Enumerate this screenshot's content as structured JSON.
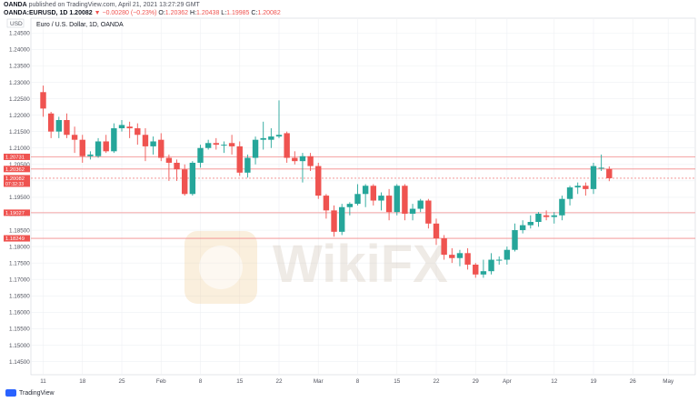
{
  "header": {
    "publish_prefix": "OANDA",
    "publish_line": "published on TradingView.com, April 21, 2021 13:27:29 GMT",
    "symbol_line": "OANDA:EURUSD, 1D 1.20082",
    "change": "▼ −0.00280 (−0.23%)",
    "ohlc": [
      {
        "label": "O:",
        "value": "1.20362"
      },
      {
        "label": "H:",
        "value": "1.20438"
      },
      {
        "label": "L:",
        "value": "1.19985"
      },
      {
        "label": "C:",
        "value": "1.20082"
      }
    ]
  },
  "currency_label": "USD",
  "chart_title": "Euro / U.S. Dollar, 1D, OANDA",
  "watermark": "WikiFX",
  "footer_brand": "TradingView",
  "colors": {
    "up": "#26a69a",
    "down": "#ef5350",
    "hline": "#f28a8a",
    "grid": "#eef0f3",
    "axis_text": "#50535e"
  },
  "chart_data": {
    "type": "candlestick",
    "title": "Euro / U.S. Dollar, 1D, OANDA",
    "ylim": [
      1.141,
      1.2495
    ],
    "y_ticks": [
      "1.14500",
      "1.15000",
      "1.15500",
      "1.16000",
      "1.16500",
      "1.17000",
      "1.17500",
      "1.18000",
      "1.18500",
      "1.19000",
      "1.19500",
      "1.20000",
      "1.20500",
      "1.21000",
      "1.21500",
      "1.22000",
      "1.22500",
      "1.23000",
      "1.23500",
      "1.24000",
      "1.24500"
    ],
    "x_ticks": [
      {
        "label": "11",
        "i": 0
      },
      {
        "label": "18",
        "i": 5
      },
      {
        "label": "25",
        "i": 10
      },
      {
        "label": "Feb",
        "i": 15
      },
      {
        "label": "8",
        "i": 20
      },
      {
        "label": "15",
        "i": 25
      },
      {
        "label": "22",
        "i": 30
      },
      {
        "label": "Mar",
        "i": 35
      },
      {
        "label": "8",
        "i": 40
      },
      {
        "label": "15",
        "i": 45
      },
      {
        "label": "22",
        "i": 50
      },
      {
        "label": "29",
        "i": 55
      },
      {
        "label": "Apr",
        "i": 59
      },
      {
        "label": "12",
        "i": 65
      },
      {
        "label": "19",
        "i": 70
      },
      {
        "label": "26",
        "i": 75
      },
      {
        "label": "May",
        "i": 79.5
      }
    ],
    "candles": [
      {
        "o": 1.227,
        "h": 1.229,
        "l": 1.2195,
        "c": 1.222
      },
      {
        "o": 1.2205,
        "h": 1.221,
        "l": 1.213,
        "c": 1.215
      },
      {
        "o": 1.215,
        "h": 1.2195,
        "l": 1.213,
        "c": 1.2185
      },
      {
        "o": 1.2185,
        "h": 1.2205,
        "l": 1.213,
        "c": 1.214
      },
      {
        "o": 1.214,
        "h": 1.2165,
        "l": 1.2085,
        "c": 1.2125
      },
      {
        "o": 1.2125,
        "h": 1.214,
        "l": 1.2055,
        "c": 1.2075
      },
      {
        "o": 1.2075,
        "h": 1.209,
        "l": 1.2065,
        "c": 1.208
      },
      {
        "o": 1.2075,
        "h": 1.213,
        "l": 1.207,
        "c": 1.212
      },
      {
        "o": 1.212,
        "h": 1.214,
        "l": 1.2085,
        "c": 1.209
      },
      {
        "o": 1.209,
        "h": 1.2175,
        "l": 1.2085,
        "c": 1.216
      },
      {
        "o": 1.216,
        "h": 1.2185,
        "l": 1.215,
        "c": 1.217
      },
      {
        "o": 1.2165,
        "h": 1.218,
        "l": 1.213,
        "c": 1.216
      },
      {
        "o": 1.216,
        "h": 1.2175,
        "l": 1.211,
        "c": 1.214
      },
      {
        "o": 1.214,
        "h": 1.216,
        "l": 1.206,
        "c": 1.2105
      },
      {
        "o": 1.2105,
        "h": 1.2135,
        "l": 1.208,
        "c": 1.212
      },
      {
        "o": 1.2125,
        "h": 1.2145,
        "l": 1.206,
        "c": 1.207
      },
      {
        "o": 1.207,
        "h": 1.208,
        "l": 1.2,
        "c": 1.2055
      },
      {
        "o": 1.2055,
        "h": 1.2065,
        "l": 1.2,
        "c": 1.2035
      },
      {
        "o": 1.2035,
        "h": 1.205,
        "l": 1.1955,
        "c": 1.196
      },
      {
        "o": 1.196,
        "h": 1.206,
        "l": 1.1955,
        "c": 1.2055
      },
      {
        "o": 1.2055,
        "h": 1.211,
        "l": 1.204,
        "c": 1.21
      },
      {
        "o": 1.21,
        "h": 1.2125,
        "l": 1.2095,
        "c": 1.2115
      },
      {
        "o": 1.2115,
        "h": 1.213,
        "l": 1.2095,
        "c": 1.211
      },
      {
        "o": 1.211,
        "h": 1.212,
        "l": 1.2085,
        "c": 1.211
      },
      {
        "o": 1.2115,
        "h": 1.214,
        "l": 1.208,
        "c": 1.2105
      },
      {
        "o": 1.2105,
        "h": 1.212,
        "l": 1.2015,
        "c": 1.2025
      },
      {
        "o": 1.2025,
        "h": 1.208,
        "l": 1.201,
        "c": 1.207
      },
      {
        "o": 1.207,
        "h": 1.2135,
        "l": 1.205,
        "c": 1.2125
      },
      {
        "o": 1.2125,
        "h": 1.218,
        "l": 1.2095,
        "c": 1.213
      },
      {
        "o": 1.2125,
        "h": 1.216,
        "l": 1.21,
        "c": 1.2135
      },
      {
        "o": 1.2135,
        "h": 1.2245,
        "l": 1.213,
        "c": 1.214
      },
      {
        "o": 1.2145,
        "h": 1.215,
        "l": 1.2055,
        "c": 1.207
      },
      {
        "o": 1.207,
        "h": 1.209,
        "l": 1.205,
        "c": 1.206
      },
      {
        "o": 1.206,
        "h": 1.2085,
        "l": 1.1995,
        "c": 1.2075
      },
      {
        "o": 1.2075,
        "h": 1.2085,
        "l": 1.203,
        "c": 1.2045
      },
      {
        "o": 1.2045,
        "h": 1.2055,
        "l": 1.1945,
        "c": 1.1955
      },
      {
        "o": 1.1955,
        "h": 1.196,
        "l": 1.1885,
        "c": 1.191
      },
      {
        "o": 1.191,
        "h": 1.1925,
        "l": 1.183,
        "c": 1.1845
      },
      {
        "o": 1.1845,
        "h": 1.193,
        "l": 1.1835,
        "c": 1.192
      },
      {
        "o": 1.192,
        "h": 1.1935,
        "l": 1.1895,
        "c": 1.193
      },
      {
        "o": 1.193,
        "h": 1.199,
        "l": 1.1925,
        "c": 1.196
      },
      {
        "o": 1.196,
        "h": 1.199,
        "l": 1.192,
        "c": 1.1985
      },
      {
        "o": 1.1985,
        "h": 1.199,
        "l": 1.1925,
        "c": 1.194
      },
      {
        "o": 1.194,
        "h": 1.1965,
        "l": 1.191,
        "c": 1.1955
      },
      {
        "o": 1.1955,
        "h": 1.1975,
        "l": 1.188,
        "c": 1.1905
      },
      {
        "o": 1.1905,
        "h": 1.199,
        "l": 1.1895,
        "c": 1.1985
      },
      {
        "o": 1.1985,
        "h": 1.199,
        "l": 1.188,
        "c": 1.19
      },
      {
        "o": 1.19,
        "h": 1.193,
        "l": 1.188,
        "c": 1.1915
      },
      {
        "o": 1.1915,
        "h": 1.1945,
        "l": 1.1905,
        "c": 1.194
      },
      {
        "o": 1.194,
        "h": 1.1945,
        "l": 1.1855,
        "c": 1.187
      },
      {
        "o": 1.187,
        "h": 1.1885,
        "l": 1.1805,
        "c": 1.1825
      },
      {
        "o": 1.1825,
        "h": 1.1835,
        "l": 1.176,
        "c": 1.1775
      },
      {
        "o": 1.1775,
        "h": 1.1795,
        "l": 1.175,
        "c": 1.1765
      },
      {
        "o": 1.1765,
        "h": 1.179,
        "l": 1.174,
        "c": 1.178
      },
      {
        "o": 1.178,
        "h": 1.1795,
        "l": 1.173,
        "c": 1.1745
      },
      {
        "o": 1.1745,
        "h": 1.175,
        "l": 1.1705,
        "c": 1.1715
      },
      {
        "o": 1.1715,
        "h": 1.176,
        "l": 1.1705,
        "c": 1.1725
      },
      {
        "o": 1.1725,
        "h": 1.178,
        "l": 1.1715,
        "c": 1.176
      },
      {
        "o": 1.176,
        "h": 1.177,
        "l": 1.1745,
        "c": 1.176
      },
      {
        "o": 1.176,
        "h": 1.18,
        "l": 1.1745,
        "c": 1.179
      },
      {
        "o": 1.179,
        "h": 1.187,
        "l": 1.1785,
        "c": 1.185
      },
      {
        "o": 1.185,
        "h": 1.188,
        "l": 1.184,
        "c": 1.1865
      },
      {
        "o": 1.1865,
        "h": 1.1895,
        "l": 1.1855,
        "c": 1.1875
      },
      {
        "o": 1.1875,
        "h": 1.1905,
        "l": 1.186,
        "c": 1.19
      },
      {
        "o": 1.1895,
        "h": 1.191,
        "l": 1.188,
        "c": 1.189
      },
      {
        "o": 1.189,
        "h": 1.1905,
        "l": 1.187,
        "c": 1.1895
      },
      {
        "o": 1.1895,
        "h": 1.1955,
        "l": 1.188,
        "c": 1.1945
      },
      {
        "o": 1.1945,
        "h": 1.1985,
        "l": 1.1925,
        "c": 1.198
      },
      {
        "o": 1.198,
        "h": 1.1995,
        "l": 1.196,
        "c": 1.1985
      },
      {
        "o": 1.1985,
        "h": 1.1995,
        "l": 1.1955,
        "c": 1.1975
      },
      {
        "o": 1.1975,
        "h": 1.2055,
        "l": 1.196,
        "c": 1.2045
      },
      {
        "o": 1.204,
        "h": 1.208,
        "l": 1.203,
        "c": 1.204
      },
      {
        "o": 1.2036,
        "h": 1.2044,
        "l": 1.1999,
        "c": 1.2008
      }
    ],
    "horizontal_lines": [
      {
        "value": 1.2073,
        "label": "1.20731"
      },
      {
        "value": 1.2036,
        "label": "1.20362"
      },
      {
        "value": 1.2008,
        "label": "1.20082",
        "sublabel": "07:32:33",
        "current": true
      },
      {
        "value": 1.1903,
        "label": "1.19027"
      },
      {
        "value": 1.1825,
        "label": "1.18249"
      }
    ]
  }
}
